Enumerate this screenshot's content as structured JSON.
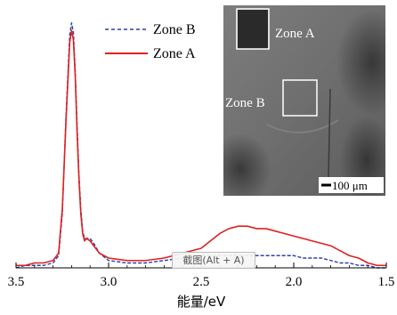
{
  "chart_data": {
    "type": "line",
    "title": "",
    "xlabel": "能量/eV",
    "ylabel": "",
    "xlim": [
      3.5,
      1.5
    ],
    "x_reversed": true,
    "ylim": [
      0,
      1.05
    ],
    "y_ticks_shown": false,
    "grid": false,
    "legend_position": "top-center",
    "x_ticks": [
      {
        "value": 3.5,
        "label": "3.5"
      },
      {
        "value": 3.0,
        "label": "3.0"
      },
      {
        "value": 2.5,
        "label": "2.5"
      },
      {
        "value": 2.0,
        "label": "2.0"
      },
      {
        "value": 1.5,
        "label": "1.5"
      }
    ],
    "series": [
      {
        "name": "Zone B",
        "color": "#2b3ea8",
        "dash": "dashed",
        "x": [
          3.5,
          3.45,
          3.4,
          3.35,
          3.3,
          3.27,
          3.25,
          3.23,
          3.21,
          3.2,
          3.19,
          3.18,
          3.17,
          3.16,
          3.15,
          3.14,
          3.13,
          3.12,
          3.1,
          3.08,
          3.05,
          3.0,
          2.9,
          2.8,
          2.7,
          2.6,
          2.5,
          2.45,
          2.4,
          2.35,
          2.3,
          2.25,
          2.2,
          2.15,
          2.1,
          2.05,
          2.0,
          1.95,
          1.9,
          1.85,
          1.8,
          1.75,
          1.7,
          1.65,
          1.6,
          1.55,
          1.5
        ],
        "y": [
          0.0,
          0.01,
          0.01,
          0.01,
          0.02,
          0.05,
          0.22,
          0.62,
          0.95,
          1.0,
          0.96,
          0.8,
          0.58,
          0.38,
          0.24,
          0.15,
          0.12,
          0.12,
          0.12,
          0.1,
          0.06,
          0.03,
          0.02,
          0.02,
          0.03,
          0.04,
          0.05,
          0.05,
          0.05,
          0.05,
          0.05,
          0.05,
          0.05,
          0.05,
          0.05,
          0.05,
          0.05,
          0.04,
          0.04,
          0.04,
          0.03,
          0.02,
          0.02,
          0.01,
          0.01,
          0.0,
          0.0
        ]
      },
      {
        "name": "Zone A",
        "color": "#e02020",
        "dash": "solid",
        "x": [
          3.5,
          3.45,
          3.4,
          3.35,
          3.3,
          3.27,
          3.25,
          3.23,
          3.21,
          3.2,
          3.19,
          3.18,
          3.17,
          3.16,
          3.15,
          3.14,
          3.13,
          3.12,
          3.1,
          3.08,
          3.05,
          3.0,
          2.9,
          2.8,
          2.7,
          2.6,
          2.5,
          2.45,
          2.4,
          2.35,
          2.3,
          2.25,
          2.2,
          2.15,
          2.1,
          2.05,
          2.0,
          1.95,
          1.9,
          1.85,
          1.8,
          1.75,
          1.7,
          1.65,
          1.6,
          1.55,
          1.5
        ],
        "y": [
          0.01,
          0.01,
          0.02,
          0.02,
          0.03,
          0.06,
          0.24,
          0.6,
          0.92,
          0.97,
          0.93,
          0.78,
          0.55,
          0.36,
          0.22,
          0.14,
          0.11,
          0.12,
          0.11,
          0.09,
          0.06,
          0.04,
          0.03,
          0.03,
          0.04,
          0.06,
          0.08,
          0.11,
          0.14,
          0.16,
          0.17,
          0.17,
          0.16,
          0.16,
          0.15,
          0.14,
          0.13,
          0.12,
          0.11,
          0.1,
          0.09,
          0.07,
          0.05,
          0.04,
          0.02,
          0.01,
          0.01
        ]
      }
    ]
  },
  "inset": {
    "region_a_label": "Zone A",
    "region_b_label": "Zone B",
    "scale_bar_label": "100 μm"
  },
  "overlay": {
    "screenshot_tip": "截图(Alt + A)"
  }
}
